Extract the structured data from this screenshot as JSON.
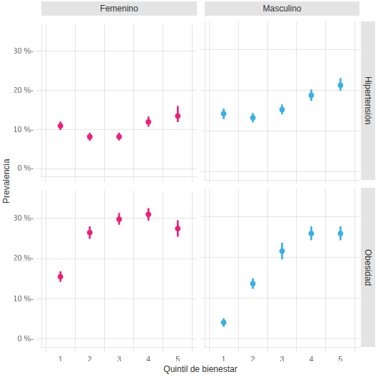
{
  "chart_data": {
    "type": "scatter",
    "xlabel": "Quintil de bienestar",
    "ylabel": "Prevalencia",
    "columns": [
      "Femenino",
      "Masculino"
    ],
    "rows": [
      "Hipertensión",
      "Obesidad"
    ],
    "x": [
      1,
      2,
      3,
      4,
      5
    ],
    "xlim": [
      0.35,
      5.65
    ],
    "xticks": [
      1,
      2,
      3,
      4,
      5
    ],
    "ylim": [
      -2,
      37
    ],
    "yticks": [
      {
        "value": 0,
        "label": "0 %-"
      },
      {
        "value": 10,
        "label": "10 %-"
      },
      {
        "value": 20,
        "label": "20 %-"
      },
      {
        "value": 30,
        "label": "30 %-"
      }
    ],
    "grid": true,
    "series": [
      {
        "row": "Hipertensión",
        "column": "Femenino",
        "color": "#E8217A",
        "values": [
          11.0,
          8.2,
          8.2,
          12.0,
          13.5
        ],
        "ylow": [
          10.0,
          7.2,
          7.3,
          10.8,
          12.0
        ],
        "yhigh": [
          12.0,
          9.2,
          9.2,
          13.3,
          16.0
        ]
      },
      {
        "row": "Hipertensión",
        "column": "Masculino",
        "color": "#3AAFE4",
        "values": [
          14.3,
          13.3,
          15.3,
          18.8,
          21.3
        ],
        "ylow": [
          13.0,
          12.2,
          14.2,
          17.5,
          20.0
        ],
        "yhigh": [
          15.5,
          14.4,
          16.5,
          20.2,
          23.0
        ]
      },
      {
        "row": "Obesidad",
        "column": "Femenino",
        "color": "#E8217A",
        "values": [
          15.5,
          26.5,
          29.8,
          31.0,
          27.5
        ],
        "ylow": [
          14.3,
          25.0,
          28.5,
          29.5,
          25.5
        ],
        "yhigh": [
          16.8,
          28.0,
          31.3,
          32.5,
          29.5
        ]
      },
      {
        "row": "Obesidad",
        "column": "Masculino",
        "color": "#3AAFE4",
        "values": [
          4.0,
          13.5,
          21.5,
          25.8,
          25.8
        ],
        "ylow": [
          3.0,
          12.3,
          19.5,
          24.2,
          24.2
        ],
        "yhigh": [
          5.0,
          14.8,
          23.5,
          27.5,
          27.5
        ]
      }
    ]
  }
}
